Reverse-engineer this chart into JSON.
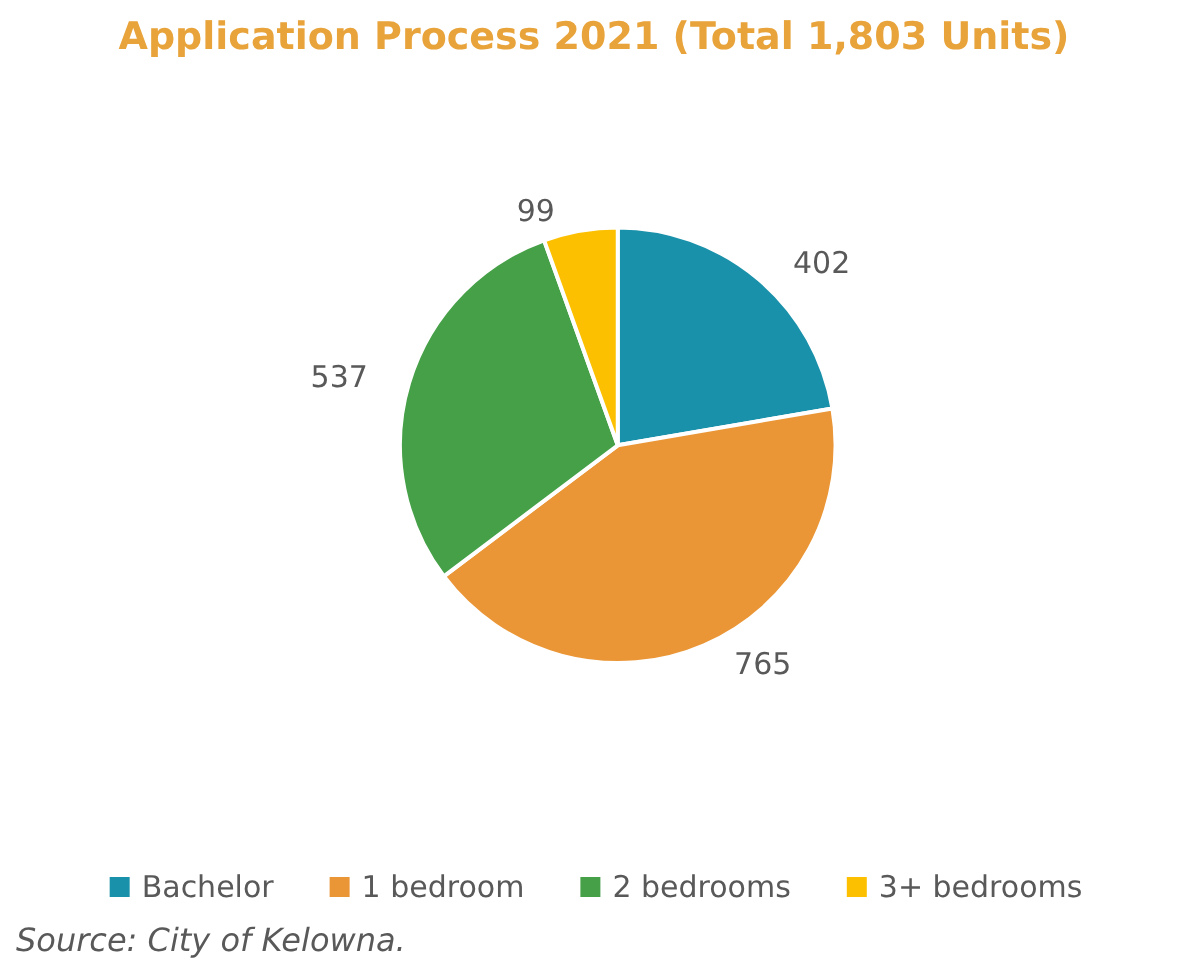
{
  "chart_data": {
    "type": "pie",
    "title": "Application Process 2021 (Total 1,803 Units)",
    "categories": [
      "Bachelor",
      "1 bedroom",
      "2 bedrooms",
      "3+ bedrooms"
    ],
    "values": [
      402,
      765,
      537,
      99
    ],
    "colors": [
      "#1a91aa",
      "#ea9636",
      "#45a047",
      "#fcc000"
    ],
    "data_labels": true,
    "legend": "bottom",
    "annotations": [
      "Source: City of Kelowna."
    ]
  }
}
